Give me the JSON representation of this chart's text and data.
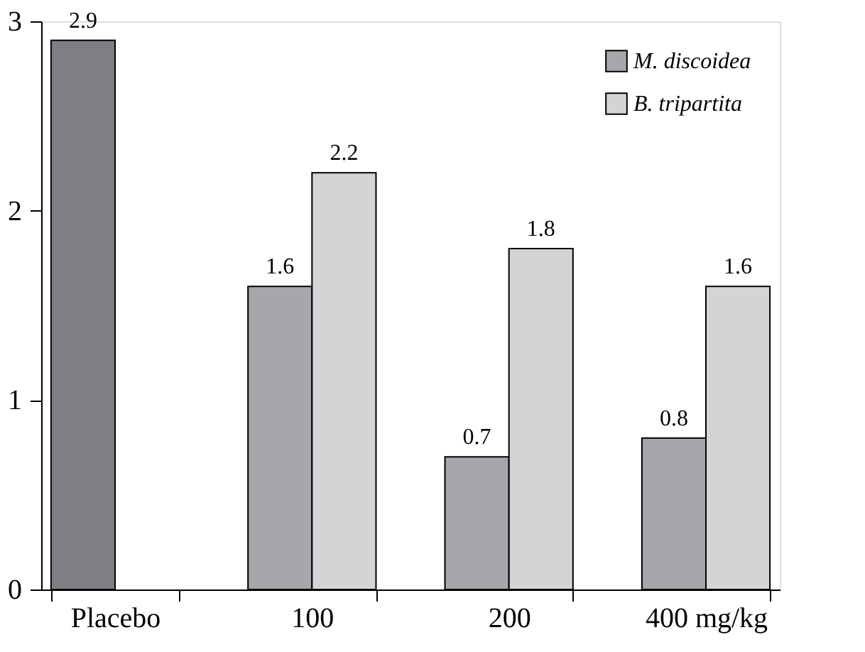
{
  "chart_data": {
    "type": "bar",
    "categories": [
      "Placebo",
      "100",
      "200",
      "400 mg/kg"
    ],
    "series": [
      {
        "name": "M. discoidea",
        "color": "#a6a7aa",
        "colors": [
          "#7e7f83",
          "#a6a7aa",
          "#a6a7aa",
          "#a6a7aa"
        ],
        "values": [
          2.9,
          1.6,
          0.7,
          0.8
        ]
      },
      {
        "name": "B. tripartita",
        "color": "#d3d4d6",
        "values": [
          null,
          2.2,
          1.8,
          1.6
        ]
      }
    ],
    "ylim": [
      0,
      3
    ],
    "yticks": [
      0,
      1,
      2,
      3
    ],
    "grid": false,
    "legend": "top right",
    "data_labels": true
  }
}
